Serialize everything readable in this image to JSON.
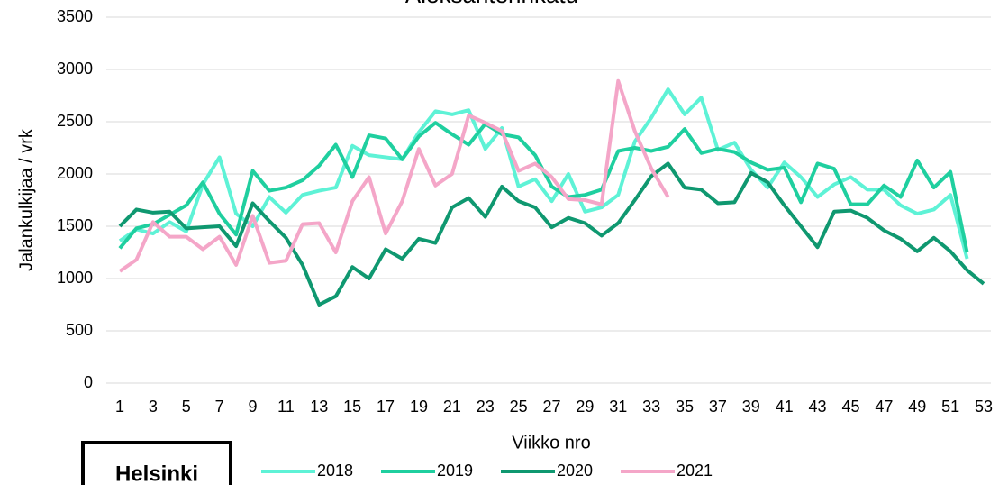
{
  "chart_data": {
    "type": "line",
    "title": "Aleksanterinkatu",
    "x_label": "Viikko nro",
    "y_label": "Jalankulkijaa / vrk",
    "x": [
      1,
      2,
      3,
      4,
      5,
      6,
      7,
      8,
      9,
      10,
      11,
      12,
      13,
      14,
      15,
      16,
      17,
      18,
      19,
      20,
      21,
      22,
      23,
      24,
      25,
      26,
      27,
      28,
      29,
      30,
      31,
      32,
      33,
      34,
      35,
      36,
      37,
      38,
      39,
      40,
      41,
      42,
      43,
      44,
      45,
      46,
      47,
      48,
      49,
      50,
      51,
      52,
      53
    ],
    "xlim": [
      1,
      53
    ],
    "xticks": [
      1,
      3,
      5,
      7,
      9,
      11,
      13,
      15,
      17,
      19,
      21,
      23,
      25,
      27,
      29,
      31,
      33,
      35,
      37,
      39,
      41,
      43,
      45,
      47,
      49,
      51,
      53
    ],
    "ylim": [
      0,
      3500
    ],
    "yticks": [
      0,
      500,
      1000,
      1500,
      2000,
      2500,
      3000,
      3500
    ],
    "grid": true,
    "legend": "bottom",
    "series": [
      {
        "name": "2018",
        "color": "#5ef2d6",
        "values": [
          1360,
          1470,
          1430,
          1540,
          1450,
          1900,
          2160,
          1620,
          1500,
          1780,
          1630,
          1800,
          1840,
          1870,
          2270,
          2180,
          2160,
          2140,
          2400,
          2600,
          2570,
          2610,
          2240,
          2440,
          1880,
          1950,
          1740,
          2000,
          1640,
          1680,
          1800,
          2310,
          2540,
          2810,
          2570,
          2730,
          2230,
          2300,
          2040,
          1870,
          2110,
          1970,
          1780,
          1900,
          1970,
          1850,
          1850,
          1700,
          1620,
          1660,
          1800,
          1190,
          null
        ]
      },
      {
        "name": "2019",
        "color": "#1fcf9f",
        "values": [
          1290,
          1480,
          1520,
          1610,
          1700,
          1920,
          1620,
          1420,
          2030,
          1840,
          1870,
          1940,
          2080,
          2280,
          1970,
          2370,
          2340,
          2140,
          2360,
          2490,
          2380,
          2280,
          2480,
          2380,
          2350,
          2180,
          1880,
          1780,
          1800,
          1850,
          2220,
          2250,
          2220,
          2260,
          2430,
          2200,
          2240,
          2210,
          2110,
          2040,
          2060,
          1730,
          2100,
          2050,
          1710,
          1710,
          1890,
          1780,
          2130,
          1870,
          2020,
          1250,
          null
        ]
      },
      {
        "name": "2020",
        "color": "#0f9870",
        "values": [
          1500,
          1660,
          1630,
          1640,
          1480,
          1490,
          1500,
          1310,
          1720,
          1550,
          1390,
          1130,
          750,
          830,
          1110,
          1000,
          1280,
          1190,
          1380,
          1340,
          1680,
          1770,
          1590,
          1880,
          1740,
          1680,
          1490,
          1580,
          1530,
          1410,
          1530,
          1750,
          1980,
          2100,
          1870,
          1850,
          1720,
          1730,
          2010,
          1920,
          1700,
          1500,
          1300,
          1640,
          1650,
          1580,
          1460,
          1380,
          1260,
          1390,
          1260,
          1080,
          950
        ]
      },
      {
        "name": "2021",
        "color": "#f4a6c8",
        "values": [
          1070,
          1180,
          1540,
          1400,
          1400,
          1280,
          1400,
          1130,
          1600,
          1150,
          1170,
          1520,
          1530,
          1250,
          1740,
          1970,
          1430,
          1740,
          2240,
          1890,
          2000,
          2560,
          2490,
          2410,
          2030,
          2100,
          1970,
          1760,
          1750,
          1710,
          2890,
          2410,
          2050,
          1780,
          null,
          null,
          null,
          null,
          null,
          null,
          null,
          null,
          null,
          null,
          null,
          null,
          null,
          null,
          null,
          null,
          null,
          null,
          null
        ]
      }
    ]
  },
  "logo": "Helsinki"
}
